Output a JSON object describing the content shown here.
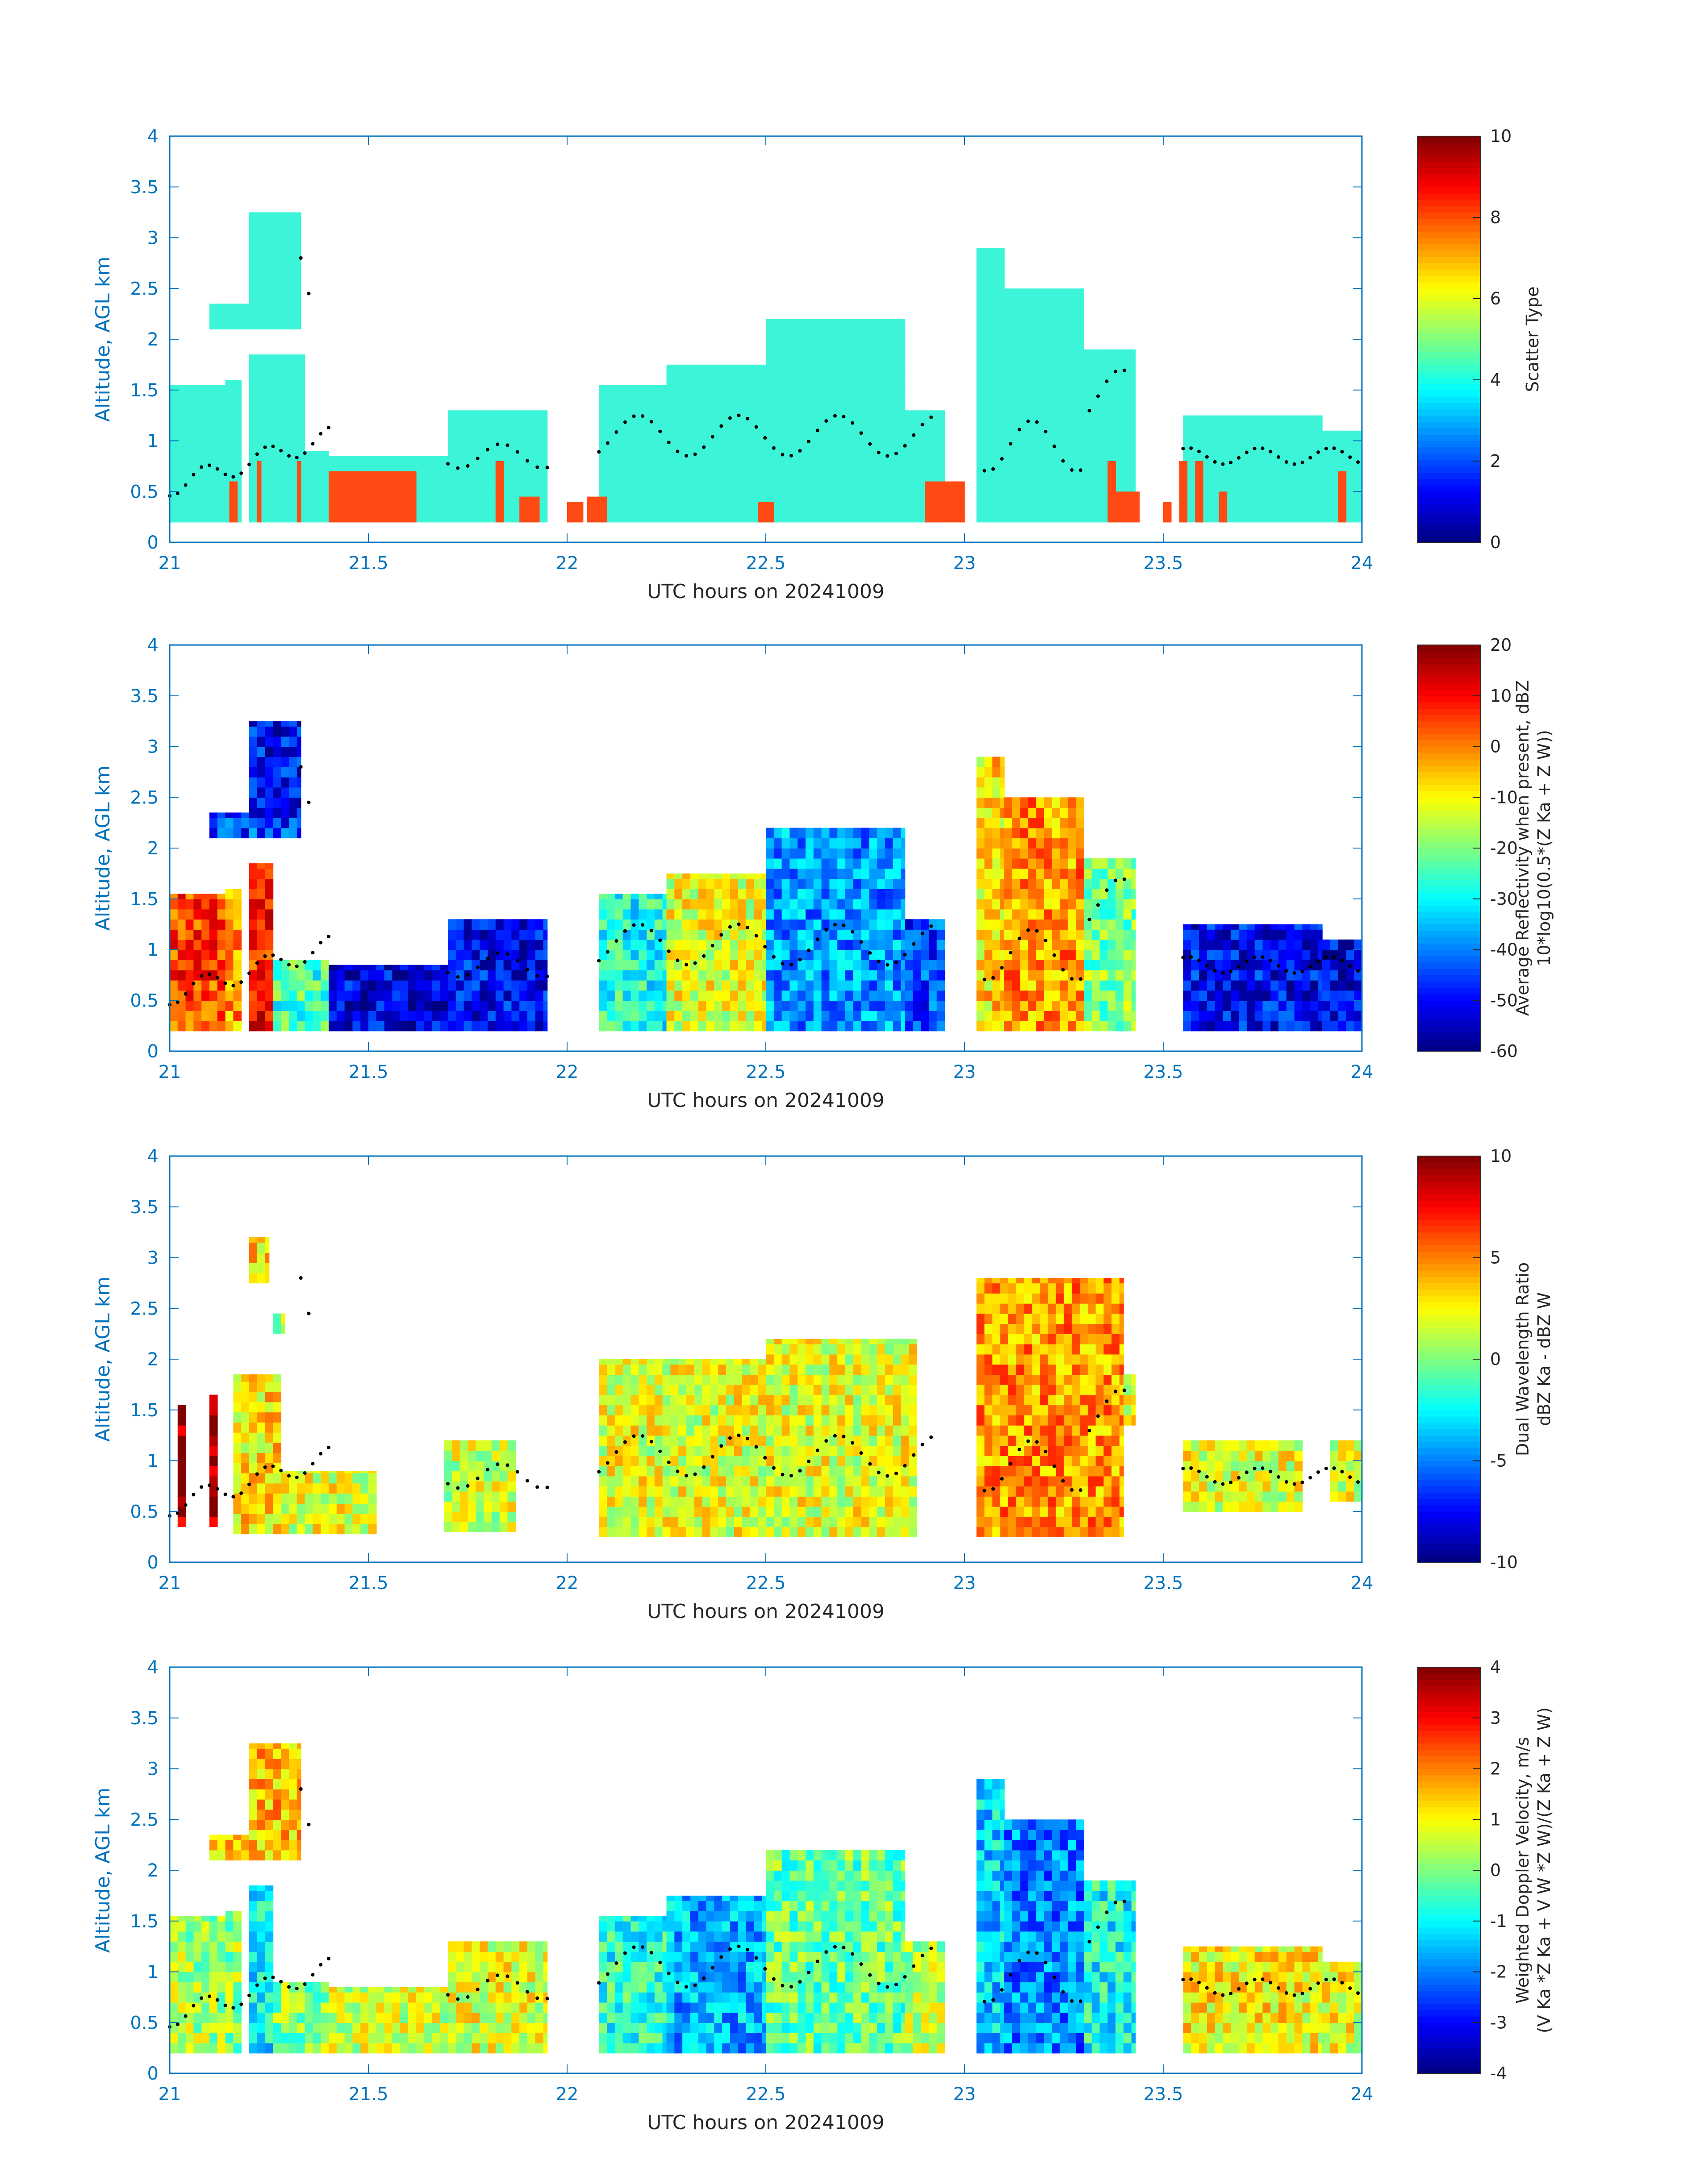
{
  "chart_data": [
    {
      "type": "heatmap",
      "panel": "scatter-type",
      "xlabel": "UTC hours on 20241009",
      "ylabel": "Altitude, AGL km",
      "xlim": [
        21,
        24
      ],
      "ylim": [
        0,
        4
      ],
      "xticks": [
        "21",
        "21.5",
        "22",
        "22.5",
        "23",
        "23.5",
        "24"
      ],
      "yticks": [
        "0",
        "0.5",
        "1",
        "1.5",
        "2",
        "2.5",
        "3",
        "3.5",
        "4"
      ],
      "colorbar": {
        "label_lines": [
          "Scatter Type"
        ],
        "clim": [
          0,
          10
        ],
        "ticks": [
          "0",
          "2",
          "4",
          "6",
          "8",
          "10"
        ]
      },
      "colormap": "scatter",
      "segments": [
        [
          21.0,
          21.14,
          0.2,
          1.55,
          3.7
        ],
        [
          21.14,
          21.18,
          0.2,
          1.6,
          3.7
        ],
        [
          21.2,
          21.34,
          0.2,
          1.85,
          3.7
        ],
        [
          21.34,
          21.4,
          0.2,
          0.9,
          3.7
        ],
        [
          21.4,
          21.7,
          0.2,
          0.85,
          3.7
        ],
        [
          21.7,
          21.95,
          0.2,
          1.3,
          3.7
        ],
        [
          21.1,
          21.33,
          2.1,
          2.35,
          3.7
        ],
        [
          21.2,
          21.33,
          2.3,
          3.25,
          3.7
        ],
        [
          22.08,
          22.25,
          0.2,
          1.55,
          3.7
        ],
        [
          22.25,
          22.5,
          0.2,
          1.75,
          3.7
        ],
        [
          22.5,
          22.85,
          0.2,
          2.2,
          3.7
        ],
        [
          22.85,
          22.95,
          0.2,
          1.3,
          3.7
        ],
        [
          23.03,
          23.1,
          0.2,
          2.9,
          3.7
        ],
        [
          23.1,
          23.3,
          0.2,
          2.5,
          3.7
        ],
        [
          23.3,
          23.43,
          0.2,
          1.9,
          3.7
        ],
        [
          23.55,
          23.9,
          0.2,
          1.25,
          3.7
        ],
        [
          23.9,
          24.0,
          0.2,
          1.1,
          3.7
        ],
        [
          21.15,
          21.17,
          0.2,
          0.6,
          8.6
        ],
        [
          21.22,
          21.23,
          0.2,
          0.8,
          8.6
        ],
        [
          21.32,
          21.33,
          0.2,
          0.8,
          8.6
        ],
        [
          21.4,
          21.62,
          0.2,
          0.7,
          8.6
        ],
        [
          21.82,
          21.84,
          0.2,
          0.8,
          8.6
        ],
        [
          21.88,
          21.93,
          0.2,
          0.45,
          8.6
        ],
        [
          22.0,
          22.04,
          0.2,
          0.4,
          8.6
        ],
        [
          22.05,
          22.1,
          0.2,
          0.45,
          8.6
        ],
        [
          22.48,
          22.52,
          0.2,
          0.4,
          8.6
        ],
        [
          22.9,
          23.0,
          0.2,
          0.6,
          8.6
        ],
        [
          23.36,
          23.38,
          0.2,
          0.8,
          8.6
        ],
        [
          23.38,
          23.44,
          0.2,
          0.5,
          8.6
        ],
        [
          23.5,
          23.52,
          0.2,
          0.4,
          8.6
        ],
        [
          23.54,
          23.56,
          0.2,
          0.8,
          8.6
        ],
        [
          23.58,
          23.6,
          0.2,
          0.8,
          8.6
        ],
        [
          23.64,
          23.66,
          0.2,
          0.5,
          8.6
        ],
        [
          23.94,
          23.96,
          0.2,
          0.7,
          8.6
        ]
      ]
    },
    {
      "type": "heatmap",
      "panel": "average-reflectivity",
      "xlabel": "UTC hours on 20241009",
      "ylabel": "Altitude, AGL km",
      "xlim": [
        21,
        24
      ],
      "ylim": [
        0,
        4
      ],
      "xticks": [
        "21",
        "21.5",
        "22",
        "22.5",
        "23",
        "23.5",
        "24"
      ],
      "yticks": [
        "0",
        "0.5",
        "1",
        "1.5",
        "2",
        "2.5",
        "3",
        "3.5",
        "4"
      ],
      "colorbar": {
        "label_lines": [
          "Average Reflectivity when present, dBZ",
          "10*log10(0.5*(Z Ka + Z W))"
        ],
        "clim": [
          -60,
          20
        ],
        "ticks": [
          "-60",
          "-50",
          "-40",
          "-30",
          "-20",
          "-10",
          "0",
          "10",
          "20"
        ]
      },
      "colormap": "jet",
      "segments": [
        [
          21.0,
          21.14,
          0.2,
          1.55,
          5
        ],
        [
          21.14,
          21.18,
          0.2,
          1.6,
          -2
        ],
        [
          21.2,
          21.26,
          0.2,
          1.85,
          8
        ],
        [
          21.26,
          21.4,
          0.2,
          0.9,
          -25
        ],
        [
          21.4,
          21.7,
          0.2,
          0.85,
          -52
        ],
        [
          21.7,
          21.95,
          0.2,
          1.3,
          -50
        ],
        [
          21.1,
          21.33,
          2.1,
          2.35,
          -45
        ],
        [
          21.2,
          21.33,
          2.3,
          3.25,
          -50
        ],
        [
          22.08,
          22.25,
          0.2,
          1.55,
          -28
        ],
        [
          22.25,
          22.5,
          0.2,
          1.75,
          -12
        ],
        [
          22.5,
          22.85,
          0.2,
          2.2,
          -38
        ],
        [
          22.85,
          22.95,
          0.2,
          1.3,
          -45
        ],
        [
          23.03,
          23.1,
          0.2,
          2.9,
          -8
        ],
        [
          23.1,
          23.3,
          0.2,
          2.5,
          -2
        ],
        [
          23.3,
          23.43,
          0.2,
          1.9,
          -20
        ],
        [
          23.55,
          23.9,
          0.2,
          1.25,
          -50
        ],
        [
          23.9,
          24.0,
          0.2,
          1.1,
          -52
        ]
      ]
    },
    {
      "type": "heatmap",
      "panel": "dual-wavelength-ratio",
      "xlabel": "UTC hours on 20241009",
      "ylabel": "Altitude, AGL km",
      "xlim": [
        21,
        24
      ],
      "ylim": [
        0,
        4
      ],
      "xticks": [
        "21",
        "21.5",
        "22",
        "22.5",
        "23",
        "23.5",
        "24"
      ],
      "yticks": [
        "0",
        "0.5",
        "1",
        "1.5",
        "2",
        "2.5",
        "3",
        "3.5",
        "4"
      ],
      "colorbar": {
        "label_lines": [
          "Dual Wavelength Ratio",
          "dBZ Ka - dBZ W"
        ],
        "clim": [
          -10,
          10
        ],
        "ticks": [
          "-10",
          "-5",
          "0",
          "5",
          "10"
        ]
      },
      "colormap": "jet",
      "segments": [
        [
          21.02,
          21.04,
          0.35,
          1.55,
          9.5
        ],
        [
          21.1,
          21.12,
          0.35,
          1.65,
          9.5
        ],
        [
          21.16,
          21.28,
          0.28,
          1.85,
          3
        ],
        [
          21.28,
          21.52,
          0.28,
          0.9,
          2
        ],
        [
          21.69,
          21.87,
          0.3,
          1.2,
          1.5
        ],
        [
          21.2,
          21.25,
          2.75,
          3.2,
          3
        ],
        [
          21.26,
          21.29,
          2.25,
          2.45,
          1
        ],
        [
          22.08,
          22.5,
          0.25,
          2.0,
          2
        ],
        [
          22.5,
          22.88,
          0.25,
          2.2,
          2
        ],
        [
          23.03,
          23.4,
          0.25,
          2.8,
          4.5
        ],
        [
          23.4,
          23.43,
          1.35,
          1.85,
          2
        ],
        [
          23.55,
          23.85,
          0.5,
          1.2,
          2
        ],
        [
          23.92,
          24.0,
          0.6,
          1.2,
          2
        ]
      ]
    },
    {
      "type": "heatmap",
      "panel": "weighted-doppler-velocity",
      "xlabel": "UTC hours on 20241009",
      "ylabel": "Altitude, AGL km",
      "xlim": [
        21,
        24
      ],
      "ylim": [
        0,
        4
      ],
      "xticks": [
        "21",
        "21.5",
        "22",
        "22.5",
        "23",
        "23.5",
        "24"
      ],
      "yticks": [
        "0",
        "0.5",
        "1",
        "1.5",
        "2",
        "2.5",
        "3",
        "3.5",
        "4"
      ],
      "colorbar": {
        "label_lines": [
          "Weighted Doppler Velocity, m/s",
          "(V Ka *Z Ka + V W *Z W)/(Z Ka + Z W)"
        ],
        "clim": [
          -4,
          4
        ],
        "ticks": [
          "-4",
          "-3",
          "-2",
          "-1",
          "0",
          "1",
          "2",
          "3",
          "4"
        ]
      },
      "colormap": "jet",
      "segments": [
        [
          21.0,
          21.14,
          0.2,
          1.55,
          0.3
        ],
        [
          21.14,
          21.18,
          0.2,
          1.6,
          0.2
        ],
        [
          21.2,
          21.26,
          0.2,
          1.85,
          -1.0
        ],
        [
          21.26,
          21.4,
          0.2,
          0.9,
          0.1
        ],
        [
          21.4,
          21.7,
          0.2,
          0.85,
          0.6
        ],
        [
          21.7,
          21.95,
          0.2,
          1.3,
          0.8
        ],
        [
          21.1,
          21.33,
          2.1,
          2.35,
          1.3
        ],
        [
          21.2,
          21.33,
          2.3,
          3.25,
          1.5
        ],
        [
          22.08,
          22.25,
          0.2,
          1.55,
          -0.7
        ],
        [
          22.25,
          22.5,
          0.2,
          1.75,
          -1.6
        ],
        [
          22.5,
          22.85,
          0.2,
          2.2,
          -0.2
        ],
        [
          22.85,
          22.95,
          0.2,
          1.3,
          0.4
        ],
        [
          23.03,
          23.1,
          0.2,
          2.9,
          -1.3
        ],
        [
          23.1,
          23.3,
          0.2,
          2.5,
          -2.0
        ],
        [
          23.3,
          23.43,
          0.2,
          1.9,
          -0.9
        ],
        [
          23.55,
          23.9,
          0.2,
          1.25,
          1.0
        ],
        [
          23.9,
          24.0,
          0.2,
          1.1,
          0.9
        ]
      ]
    }
  ]
}
